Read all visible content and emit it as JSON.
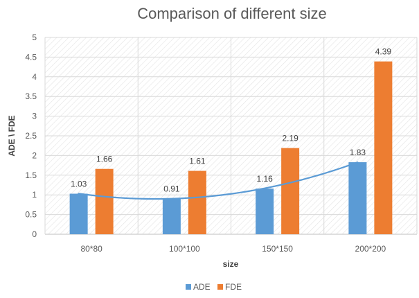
{
  "chart_data": {
    "type": "bar",
    "title": "Comparison of different size",
    "xlabel": "size",
    "ylabel": "ADE \\ FDE",
    "categories": [
      "80*80",
      "100*100",
      "150*150",
      "200*200"
    ],
    "ylim": [
      0,
      5
    ],
    "yticks": [
      "0",
      "0.5",
      "1",
      "1.5",
      "2",
      "2.5",
      "3",
      "3.5",
      "4",
      "4.5",
      "5"
    ],
    "grid": true,
    "legend_position": "bottom",
    "series": [
      {
        "name": "ADE",
        "values": [
          1.03,
          0.91,
          1.16,
          1.83
        ],
        "labels": [
          "1.03",
          "0.91",
          "1.16",
          "1.83"
        ],
        "color": "#5B9BD5"
      },
      {
        "name": "FDE",
        "values": [
          1.66,
          1.61,
          2.19,
          4.39
        ],
        "labels": [
          "1.66",
          "1.61",
          "2.19",
          "4.39"
        ],
        "color": "#ED7D31"
      }
    ],
    "trendline": {
      "series": "ADE",
      "kind": "polynomial",
      "color": "#5B9BD5"
    }
  }
}
